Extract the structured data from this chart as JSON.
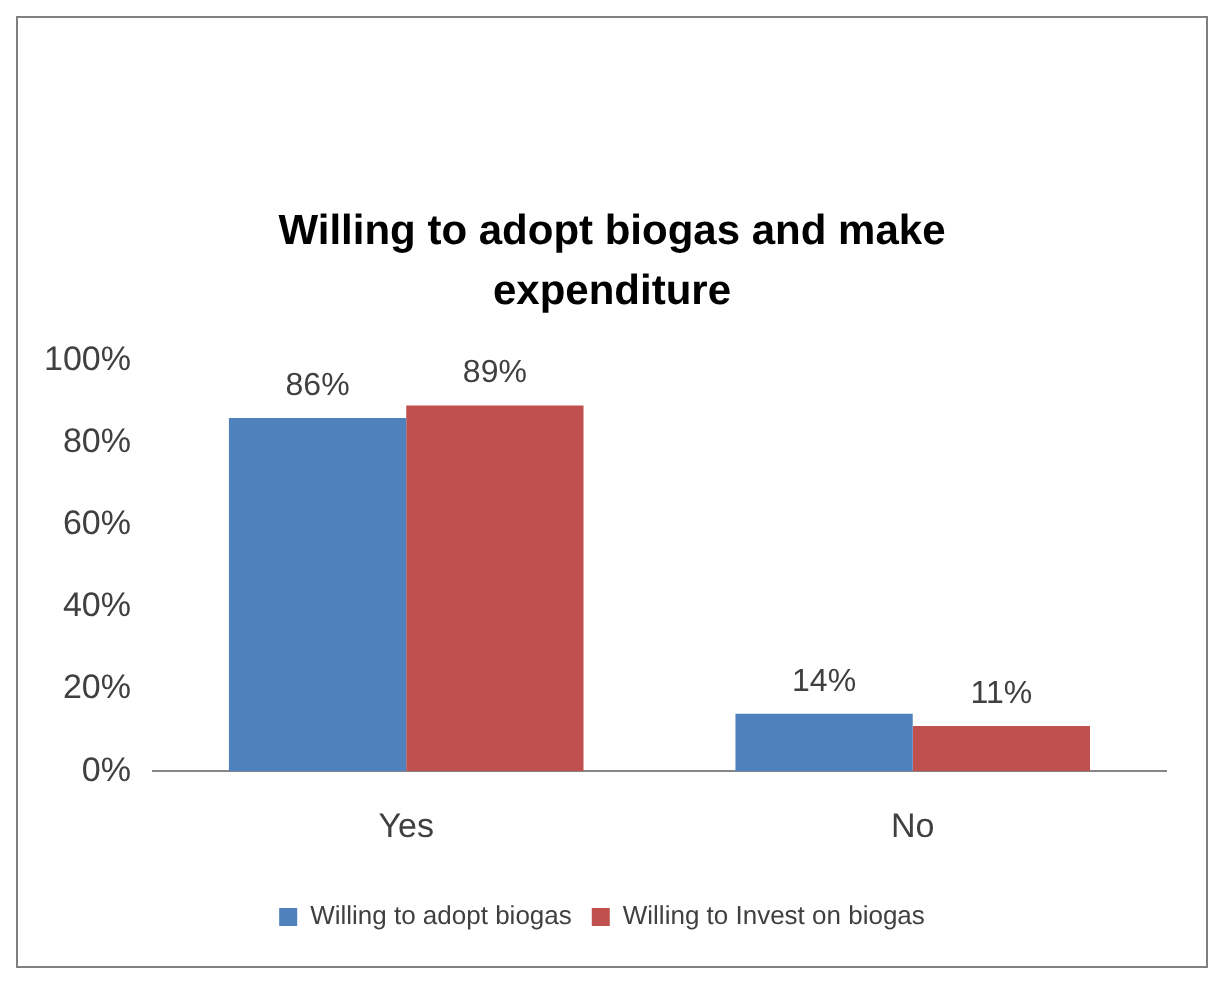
{
  "chart_data": {
    "type": "bar",
    "title": "Willing to adopt biogas and make expenditure",
    "categories": [
      "Yes",
      "No"
    ],
    "series": [
      {
        "name": "Willing to adopt biogas",
        "color": "#4f81bd",
        "values": [
          86,
          14
        ],
        "value_labels": [
          "86%",
          "14%"
        ]
      },
      {
        "name": "Willing to Invest on biogas",
        "color": "#c0504d",
        "values": [
          89,
          11
        ],
        "value_labels": [
          "89%",
          "11%"
        ]
      }
    ],
    "ylim": [
      0,
      100
    ],
    "yticks": [
      {
        "value": 0,
        "label": "0%"
      },
      {
        "value": 20,
        "label": "20%"
      },
      {
        "value": 40,
        "label": "40%"
      },
      {
        "value": 60,
        "label": "60%"
      },
      {
        "value": 80,
        "label": "80%"
      },
      {
        "value": 100,
        "label": "100%"
      }
    ],
    "grid": false,
    "legend": "bottom"
  }
}
